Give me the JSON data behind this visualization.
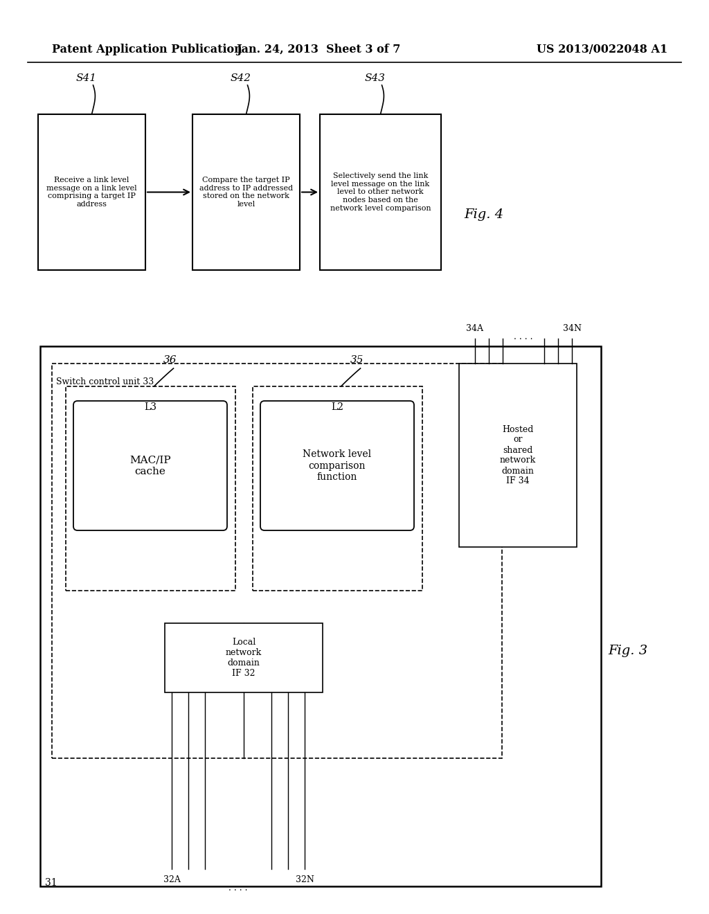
{
  "header_left": "Patent Application Publication",
  "header_mid": "Jan. 24, 2013  Sheet 3 of 7",
  "header_right": "US 2013/0022048 A1",
  "fig4_label": "Fig. 4",
  "fig3_label": "Fig. 3",
  "box1_label": "Receive a link level\nmessage on a link level\ncomprising a target IP\naddress",
  "box2_label": "Compare the target IP\naddress to IP addressed\nstored on the network\nlevel",
  "box3_label": "Selectively send the link\nlevel message on the link\nlevel to other network\nnodes based on the\nnetwork level comparison",
  "step1": "S41",
  "step2": "S42",
  "step3": "S43",
  "mac_label": "MAC/IP\ncache",
  "mac_num": "36",
  "mac_layer": "L3",
  "net_label": "Network level\ncomparison\nfunction",
  "net_num": "35",
  "net_layer": "L2",
  "hosted_label": "Hosted\nor\nshared\nnetwork\ndomain\nIF 34",
  "local_label": "Local\nnetwork\ndomain\nIF 32",
  "outer_num": "31",
  "switch_label": "Switch control unit 33",
  "top_left_label": "34A",
  "top_right_label": "34N",
  "bot_left_label": "32A",
  "bot_right_label": "32N",
  "dots": ". . . . ."
}
